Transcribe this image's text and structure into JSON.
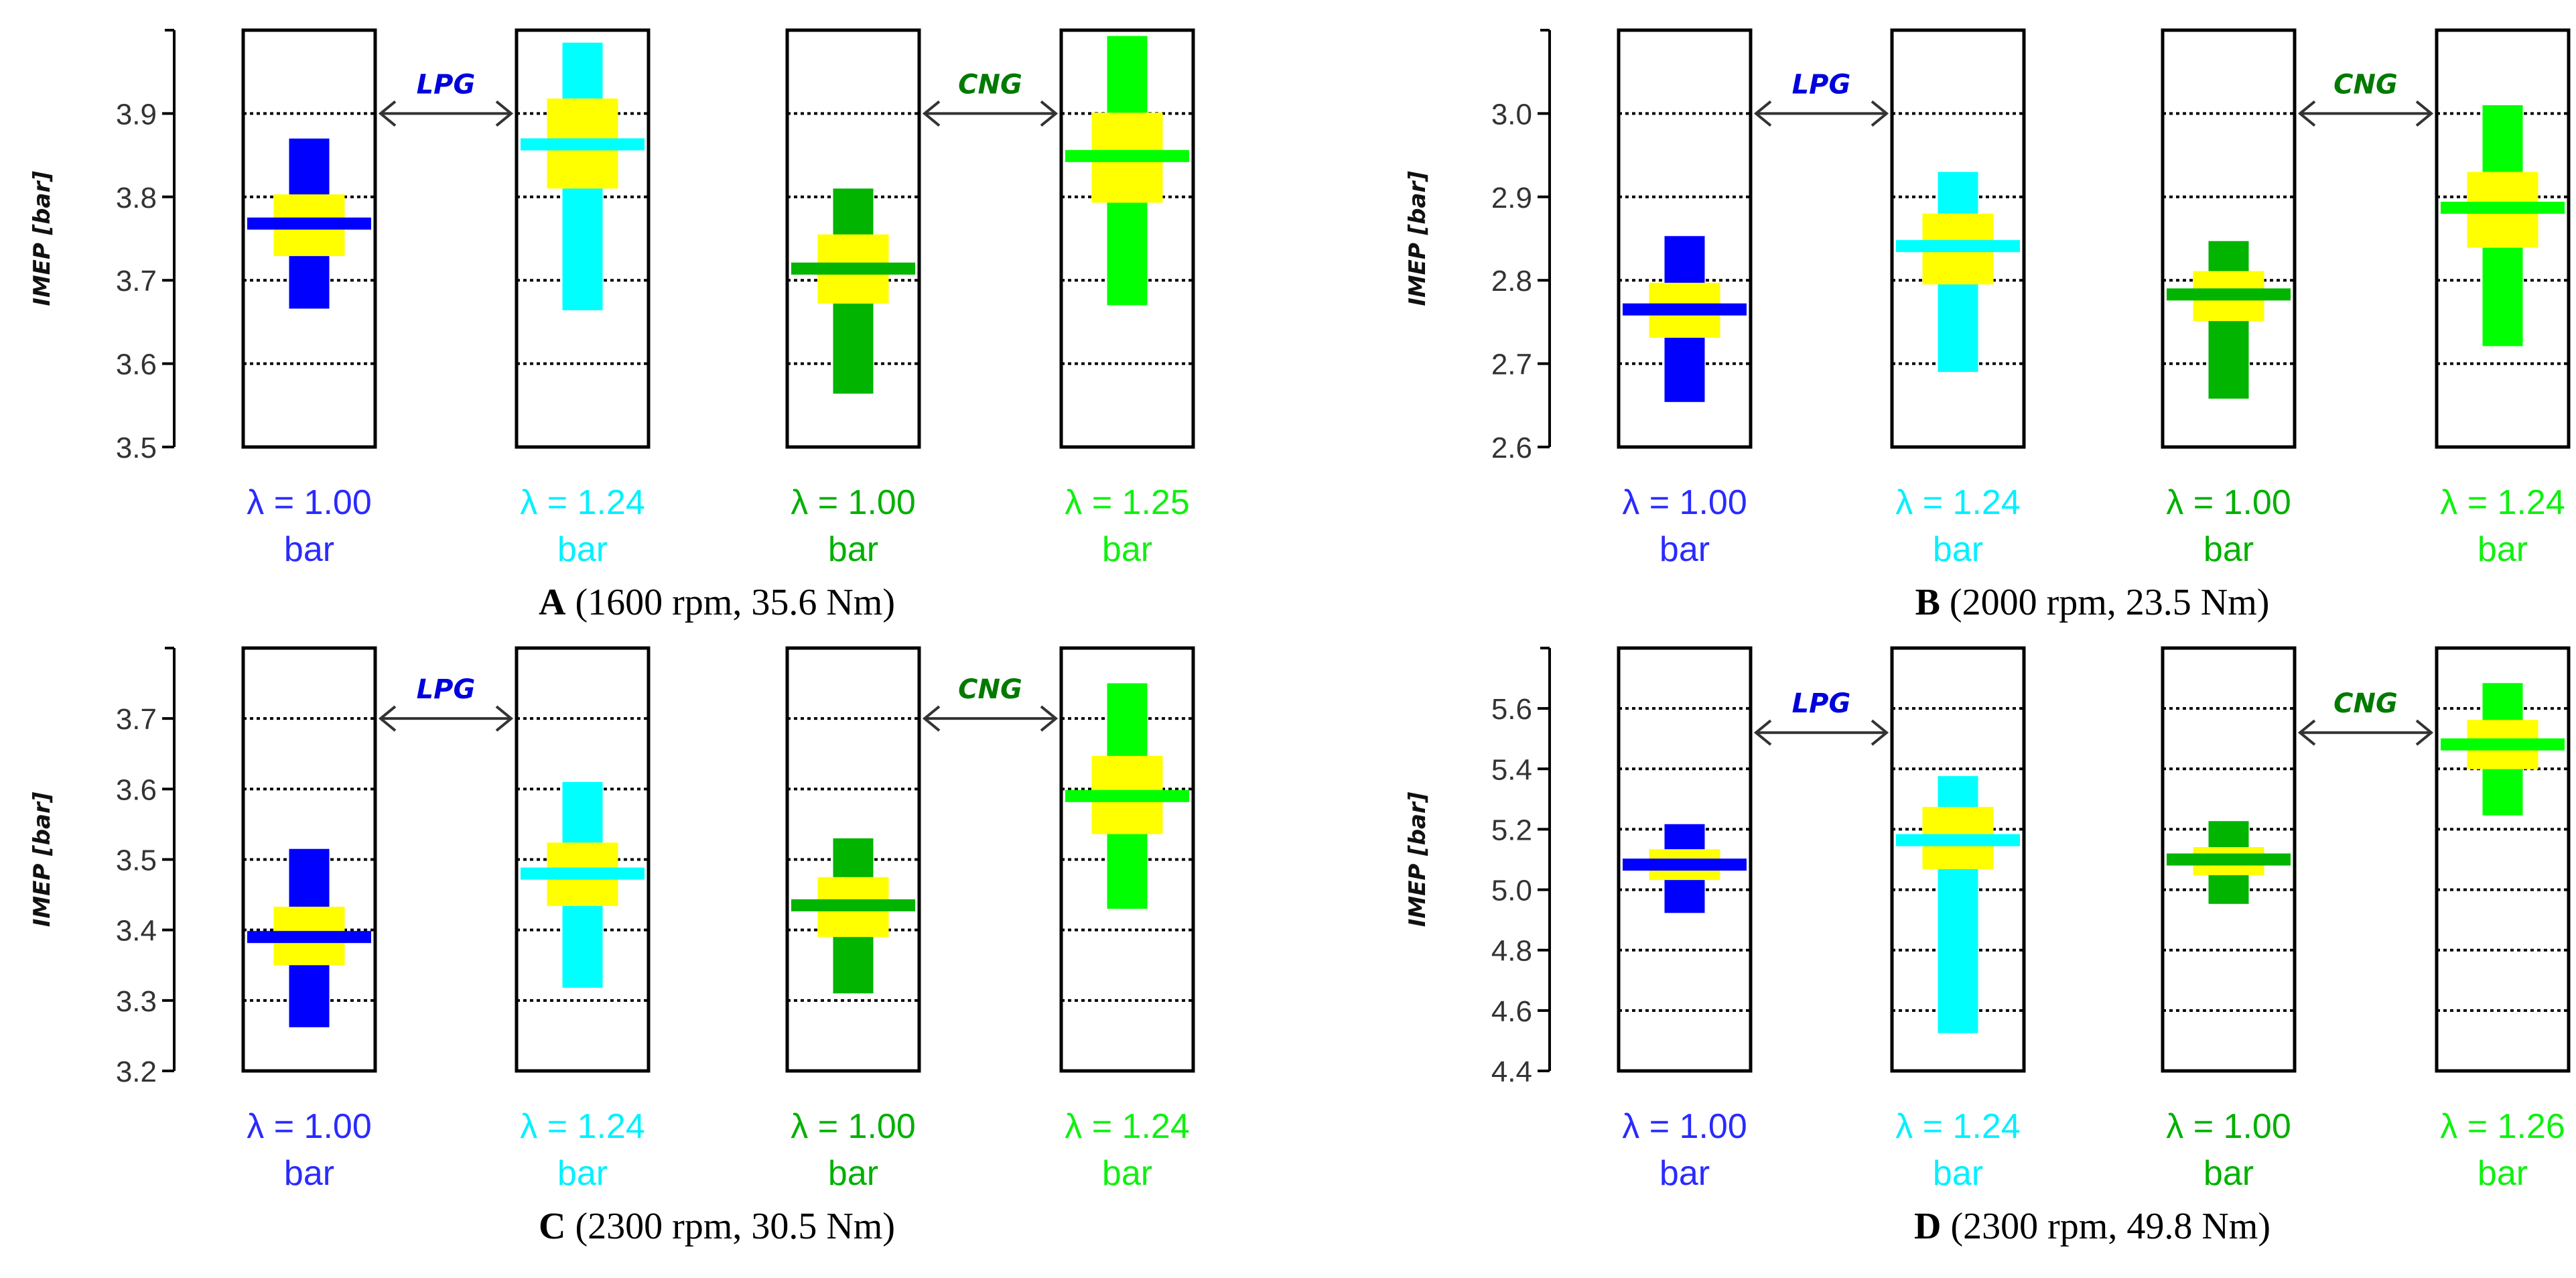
{
  "chart_data": [
    {
      "type": "box",
      "caption_letter": "A",
      "caption_rest": " (1600 rpm, 35.6 Nm)",
      "ylabel": "IMEP [bar]",
      "ylim": [
        3.5,
        4.0
      ],
      "yticks": [
        3.5,
        3.6,
        3.7,
        3.8,
        3.9
      ],
      "ytick_labels": [
        "3.5",
        "3.6",
        "3.7",
        "3.8",
        "3.9"
      ],
      "fuel_labels": [
        "LPG",
        "CNG"
      ],
      "groups": [
        {
          "label": "λ = 1.00",
          "unit": "bar",
          "color": "#0000ff",
          "text_color": "#2a2aff",
          "min": 3.666,
          "max": 3.87,
          "q_low": 3.729,
          "q_high": 3.803,
          "mean": 3.768
        },
        {
          "label": "λ = 1.24",
          "unit": "bar",
          "color": "#00ffff",
          "text_color": "#00f0ff",
          "min": 3.664,
          "max": 3.985,
          "q_low": 3.81,
          "q_high": 3.918,
          "mean": 3.863
        },
        {
          "label": "λ = 1.00",
          "unit": "bar",
          "color": "#00b400",
          "text_color": "#00b000",
          "min": 3.564,
          "max": 3.81,
          "q_low": 3.672,
          "q_high": 3.755,
          "mean": 3.714
        },
        {
          "label": "λ = 1.25",
          "unit": "bar",
          "color": "#00ff00",
          "text_color": "#10f010",
          "min": 3.67,
          "max": 3.993,
          "q_low": 3.793,
          "q_high": 3.901,
          "mean": 3.849
        }
      ]
    },
    {
      "type": "box",
      "caption_letter": "B",
      "caption_rest": " (2000 rpm, 23.5 Nm)",
      "ylabel": "IMEP [bar]",
      "ylim": [
        2.6,
        3.1
      ],
      "yticks": [
        2.6,
        2.7,
        2.8,
        2.9,
        3.0
      ],
      "ytick_labels": [
        "2.6",
        "2.7",
        "2.8",
        "2.9",
        "3.0"
      ],
      "fuel_labels": [
        "LPG",
        "CNG"
      ],
      "groups": [
        {
          "label": "λ = 1.00",
          "unit": "bar",
          "color": "#0000ff",
          "text_color": "#2a2aff",
          "min": 2.654,
          "max": 2.853,
          "q_low": 2.731,
          "q_high": 2.797,
          "mean": 2.765
        },
        {
          "label": "λ = 1.24",
          "unit": "bar",
          "color": "#00ffff",
          "text_color": "#00f0ff",
          "min": 2.69,
          "max": 2.93,
          "q_low": 2.795,
          "q_high": 2.88,
          "mean": 2.841
        },
        {
          "label": "λ = 1.00",
          "unit": "bar",
          "color": "#00b400",
          "text_color": "#00b000",
          "min": 2.658,
          "max": 2.847,
          "q_low": 2.751,
          "q_high": 2.811,
          "mean": 2.783
        },
        {
          "label": "λ = 1.24",
          "unit": "bar",
          "color": "#00ff00",
          "text_color": "#10f010",
          "min": 2.721,
          "max": 3.01,
          "q_low": 2.839,
          "q_high": 2.93,
          "mean": 2.887
        }
      ]
    },
    {
      "type": "box",
      "caption_letter": "C",
      "caption_rest": " (2300 rpm, 30.5 Nm)",
      "ylabel": "IMEP [bar]",
      "ylim": [
        3.2,
        3.8
      ],
      "yticks": [
        3.2,
        3.3,
        3.4,
        3.5,
        3.6,
        3.7
      ],
      "ytick_labels": [
        "3.2",
        "3.3",
        "3.4",
        "3.5",
        "3.6",
        "3.7"
      ],
      "fuel_labels": [
        "LPG",
        "CNG"
      ],
      "groups": [
        {
          "label": "λ = 1.00",
          "unit": "bar",
          "color": "#0000ff",
          "text_color": "#2a2aff",
          "min": 3.262,
          "max": 3.515,
          "q_low": 3.35,
          "q_high": 3.433,
          "mean": 3.39
        },
        {
          "label": "λ = 1.24",
          "unit": "bar",
          "color": "#00ffff",
          "text_color": "#00f0ff",
          "min": 3.318,
          "max": 3.61,
          "q_low": 3.434,
          "q_high": 3.524,
          "mean": 3.48
        },
        {
          "label": "λ = 1.00",
          "unit": "bar",
          "color": "#00b400",
          "text_color": "#00b000",
          "min": 3.31,
          "max": 3.53,
          "q_low": 3.39,
          "q_high": 3.475,
          "mean": 3.435
        },
        {
          "label": "λ = 1.24",
          "unit": "bar",
          "color": "#00ff00",
          "text_color": "#10f010",
          "min": 3.43,
          "max": 3.75,
          "q_low": 3.536,
          "q_high": 3.647,
          "mean": 3.59
        }
      ]
    },
    {
      "type": "box",
      "caption_letter": "D",
      "caption_rest": " (2300 rpm, 49.8 Nm)",
      "ylabel": "IMEP [bar]",
      "ylim": [
        4.4,
        5.8
      ],
      "yticks": [
        4.4,
        4.6,
        4.8,
        5.0,
        5.2,
        5.4,
        5.6
      ],
      "ytick_labels": [
        "4.4",
        "4.6",
        "4.8",
        "5.0",
        "5.2",
        "5.4",
        "5.6"
      ],
      "fuel_labels": [
        "LPG",
        "CNG"
      ],
      "groups": [
        {
          "label": "λ = 1.00",
          "unit": "bar",
          "color": "#0000ff",
          "text_color": "#2a2aff",
          "min": 4.923,
          "max": 5.217,
          "q_low": 5.032,
          "q_high": 5.134,
          "mean": 5.083
        },
        {
          "label": "λ = 1.24",
          "unit": "bar",
          "color": "#00ffff",
          "text_color": "#00f0ff",
          "min": 4.525,
          "max": 5.376,
          "q_low": 5.068,
          "q_high": 5.274,
          "mean": 5.164
        },
        {
          "label": "λ = 1.00",
          "unit": "bar",
          "color": "#00b400",
          "text_color": "#00b000",
          "min": 4.953,
          "max": 5.227,
          "q_low": 5.048,
          "q_high": 5.141,
          "mean": 5.1
        },
        {
          "label": "λ = 1.26",
          "unit": "bar",
          "color": "#00ff00",
          "text_color": "#10f010",
          "min": 5.246,
          "max": 5.684,
          "q_low": 5.399,
          "q_high": 5.562,
          "mean": 5.481
        }
      ]
    }
  ],
  "colors": {
    "iqr": "#ffff00",
    "lpg_text": "#0000dd",
    "cng_text": "#007a00",
    "axis": "#000000"
  }
}
